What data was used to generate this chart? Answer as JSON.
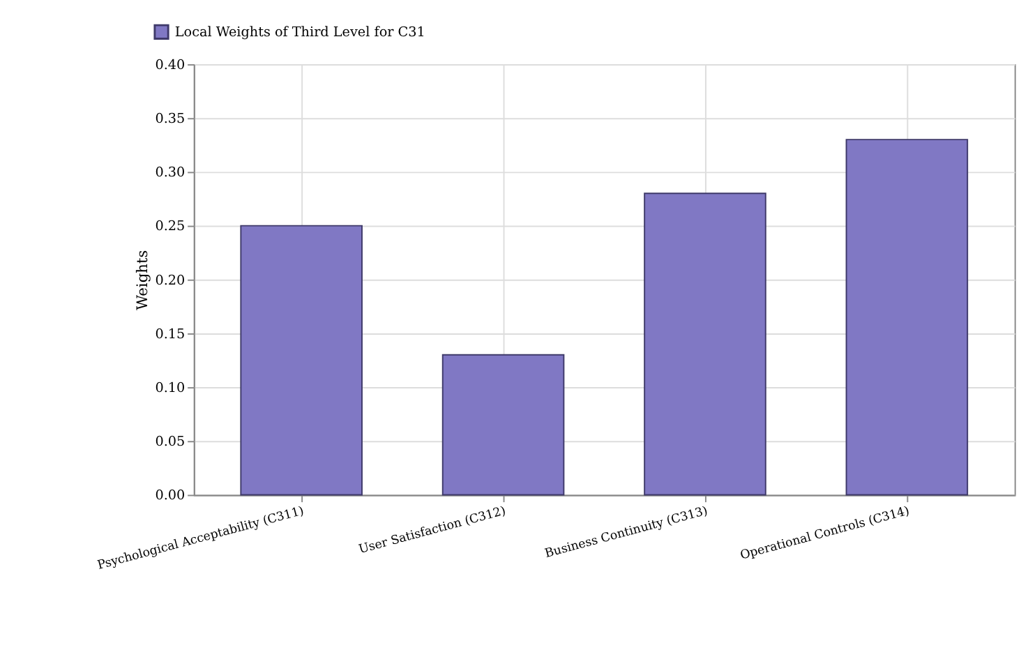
{
  "chart_data": {
    "type": "bar",
    "categories": [
      "Psychological Acceptability (C311)",
      "User Satisfaction (C312)",
      "Business Continuity (C313)",
      "Operational Controls (C314)"
    ],
    "series": [
      {
        "name": "Local Weights of Third Level for C31",
        "color": "#8078c4",
        "values": [
          0.25,
          0.13,
          0.28,
          0.33
        ]
      }
    ],
    "ylabel": "Weights",
    "ylim": [
      0,
      0.4
    ],
    "yticks": [
      {
        "value": 0,
        "label": "0.00"
      },
      0.05,
      {
        "value": 0.1,
        "label": "0.10"
      },
      0.15,
      {
        "value": 0.2,
        "label": "0.20"
      },
      0.25,
      {
        "value": 0.3,
        "label": "0.30"
      },
      0.35,
      {
        "value": 0.4,
        "label": "0.40"
      }
    ],
    "grid": true,
    "legend": "top left"
  }
}
